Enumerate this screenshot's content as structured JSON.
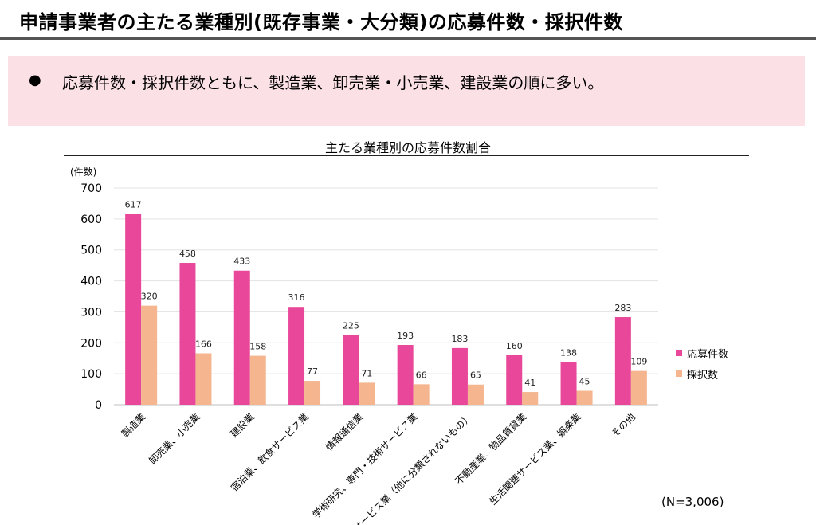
{
  "header": {
    "title": "申請事業者の主たる業種別(既存事業・大分類)の応募件数・採択件数"
  },
  "callout": {
    "bullet": "●",
    "text": "応募件数・採択件数ともに、製造業、卸売業・小売業、建設業の順に多い。"
  },
  "chart_data": {
    "type": "bar",
    "title": "主たる業種別の応募件数割合",
    "ylabel": "(件数)",
    "ylim": [
      0,
      700
    ],
    "yticks": [
      0,
      100,
      200,
      300,
      400,
      500,
      600,
      700
    ],
    "categories": [
      "製造業",
      "卸売業、小売業",
      "建設業",
      "宿泊業、飲食サービス業",
      "情報通信業",
      "学術研究、専門・技術サービス業",
      "サービス業（他に分類されないもの）",
      "不動産業、物品賃貸業",
      "生活関連サービス業、娯楽業",
      "その他"
    ],
    "series": [
      {
        "name": "応募件数",
        "color": "#e8479a",
        "values": [
          617,
          458,
          433,
          316,
          225,
          193,
          183,
          160,
          138,
          283
        ]
      },
      {
        "name": "採択数",
        "color": "#f4b58f",
        "values": [
          320,
          166,
          158,
          77,
          71,
          66,
          65,
          41,
          45,
          109
        ]
      }
    ],
    "legend_position": "right",
    "grid": true,
    "note": "(N=3,006)"
  }
}
